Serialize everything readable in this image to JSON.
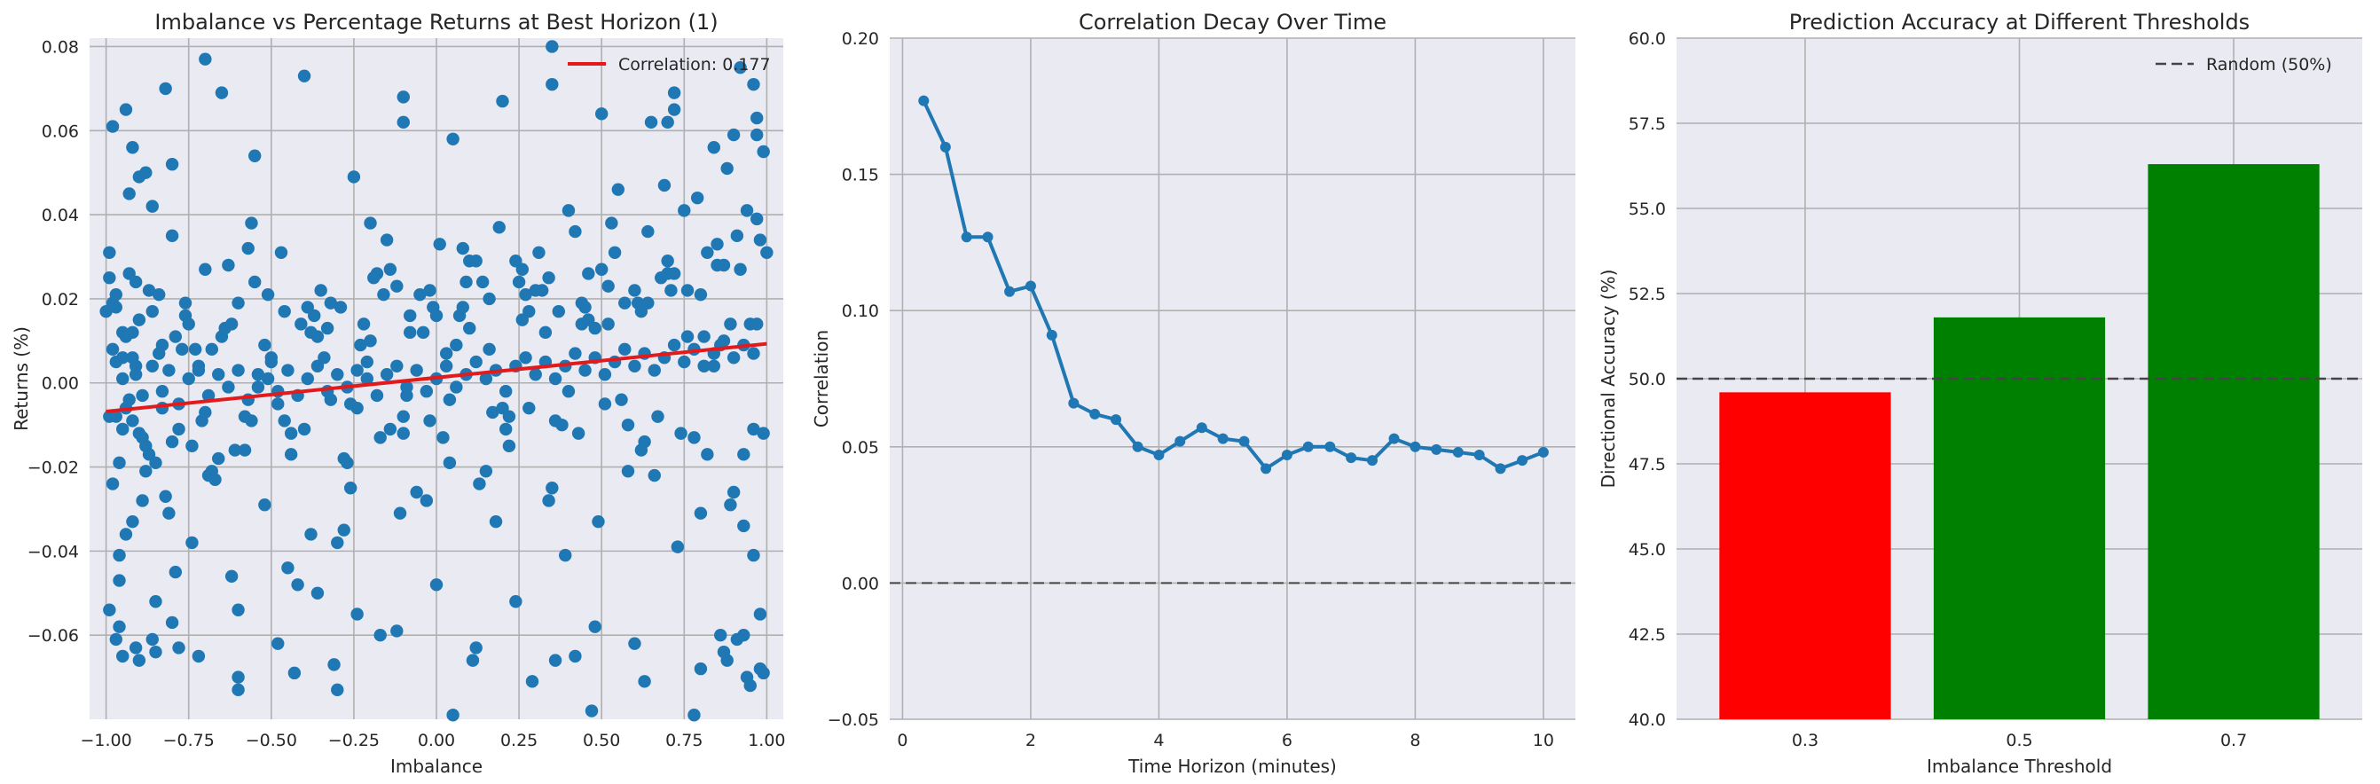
{
  "colors": {
    "panel_bg": "#eaeaf2",
    "grid": "#b0b0b0",
    "scatter": "#1f77b4",
    "fit_line": "#e31a1c",
    "line": "#1f77b4",
    "bar_below": "#ff0000",
    "bar_above": "#008000",
    "ref_line": "#444444"
  },
  "chart_data": [
    {
      "type": "scatter",
      "title": "Imbalance vs Percentage Returns at Best Horizon (1)",
      "xlabel": "Imbalance",
      "ylabel": "Returns (%)",
      "xlim": [
        -1.05,
        1.05
      ],
      "ylim": [
        -0.08,
        0.082
      ],
      "xticks": [
        -1.0,
        -0.75,
        -0.5,
        -0.25,
        0.0,
        0.25,
        0.5,
        0.75,
        1.0
      ],
      "xtick_labels": [
        "−1.00",
        "−0.75",
        "−0.50",
        "−0.25",
        "0.00",
        "0.25",
        "0.50",
        "0.75",
        "1.00"
      ],
      "yticks": [
        -0.06,
        -0.04,
        -0.02,
        0.0,
        0.02,
        0.04,
        0.06,
        0.08
      ],
      "ytick_labels": [
        "−0.06",
        "−0.04",
        "−0.02",
        "0.00",
        "0.02",
        "0.04",
        "0.06",
        "0.08"
      ],
      "grid": true,
      "legend_position": "top-right",
      "legend_label": "Correlation: 0.177",
      "fit_line": {
        "x": [
          -1.0,
          1.0
        ],
        "y": [
          -0.0068,
          0.0093
        ]
      },
      "points": {
        "x": [
          -0.99,
          -0.98,
          -0.97,
          -0.96,
          -0.95,
          -0.94,
          -0.93,
          -0.92,
          -0.91,
          -0.9,
          -0.88,
          -0.87,
          -0.85,
          -0.83,
          -0.82,
          -0.8,
          -0.78,
          -0.76,
          -0.74,
          -0.72,
          -0.7,
          -0.68,
          -0.65,
          -0.62,
          -0.6,
          -0.58,
          -0.55,
          -0.52,
          -0.5,
          -0.47,
          -0.44,
          -0.41,
          -0.38,
          -0.35,
          -0.32,
          -0.29,
          -0.26,
          -0.23,
          -0.2,
          -0.17,
          -0.14,
          -0.11,
          -0.08,
          -0.05,
          -0.02,
          0.01,
          0.04,
          0.07,
          0.1,
          0.13,
          0.16,
          0.19,
          0.22,
          0.25,
          0.28,
          0.31,
          0.34,
          0.37,
          0.4,
          0.43,
          0.46,
          0.49,
          0.52,
          0.55,
          0.58,
          0.61,
          0.64,
          0.67,
          0.7,
          0.73,
          0.76,
          0.79,
          0.82,
          0.85,
          0.88,
          0.9,
          0.92,
          0.94,
          0.96,
          0.98,
          0.99,
          -0.97,
          -0.93,
          -0.89,
          -0.84,
          -0.79,
          -0.73,
          -0.66,
          -0.57,
          -0.48,
          -0.39,
          -0.3,
          -0.21,
          -0.12,
          -0.03,
          0.06,
          0.15,
          0.24,
          0.33,
          0.42,
          0.51,
          0.6,
          0.69,
          0.78,
          0.87,
          0.95,
          -0.99,
          -0.95,
          -0.9,
          -0.86,
          -0.81,
          -0.75,
          -0.69,
          -0.63,
          -0.54,
          -0.45,
          -0.36,
          -0.27,
          -0.18,
          -0.09,
          0.0,
          0.09,
          0.18,
          0.27,
          0.36,
          0.45,
          0.54,
          0.63,
          0.72,
          0.81,
          0.89,
          0.97,
          -0.98,
          -0.94,
          -0.91,
          -0.87,
          -0.8,
          -0.71,
          -0.61,
          -0.51,
          -0.42,
          -0.33,
          -0.24,
          -0.15,
          -0.06,
          0.03,
          0.12,
          0.21,
          0.3,
          0.39,
          0.48,
          0.57,
          0.66,
          0.75,
          0.84,
          0.93,
          1.0,
          -1.0,
          -0.96,
          -0.92,
          -0.85,
          -0.77,
          -0.67,
          -0.56,
          -0.46,
          -0.37,
          -0.28,
          -0.19,
          -0.1,
          -0.01,
          0.08,
          0.17,
          0.26,
          0.35,
          0.44,
          0.53,
          0.62,
          0.71,
          0.8,
          0.86,
          0.91,
          0.96,
          -0.99,
          -0.97,
          -0.95,
          -0.93,
          -0.91,
          -0.89,
          -0.86,
          -0.83,
          -0.81,
          -0.78,
          -0.75,
          -0.72,
          -0.69,
          -0.66,
          -0.63,
          -0.6,
          -0.57,
          -0.54,
          -0.51,
          -0.48,
          -0.45,
          -0.42,
          -0.39,
          -0.36,
          -0.33,
          -0.3,
          -0.27,
          -0.24,
          -0.21,
          -0.18,
          -0.15,
          -0.12,
          -0.09,
          -0.06,
          -0.03,
          0.0,
          0.03,
          0.06,
          0.09,
          0.12,
          0.15,
          0.18,
          0.21,
          0.24,
          0.27,
          0.3,
          0.33,
          0.36,
          0.39,
          0.42,
          0.45,
          0.48,
          0.51,
          0.54,
          0.57,
          0.6,
          0.63,
          0.66,
          0.69,
          0.72,
          0.75,
          0.78,
          0.81,
          0.84,
          0.87,
          0.9,
          0.93,
          0.96,
          0.99,
          -0.98,
          -0.96,
          -0.94,
          -0.92,
          -0.9,
          -0.88,
          -0.84,
          -0.8,
          -0.76,
          -0.7,
          -0.64,
          -0.58,
          -0.52,
          -0.46,
          -0.4,
          -0.34,
          -0.28,
          -0.22,
          -0.16,
          -0.1,
          -0.04,
          0.02,
          0.08,
          0.14,
          0.2,
          0.26,
          0.32,
          0.38,
          0.44,
          0.5,
          0.56,
          0.62,
          0.68,
          0.74,
          0.8,
          0.85,
          0.89,
          0.93,
          0.97,
          -0.99,
          -0.97,
          -0.95,
          -0.92,
          -0.89,
          -0.86,
          -0.83,
          -0.79,
          -0.74,
          -0.68,
          -0.62,
          -0.56,
          -0.5,
          -0.44,
          -0.38,
          -0.32,
          -0.26,
          -0.2,
          -0.14,
          -0.08,
          -0.02,
          0.04,
          0.1,
          0.16,
          0.22,
          0.28,
          0.34,
          0.4,
          0.46,
          0.52,
          0.58,
          0.64,
          0.7,
          0.76,
          0.82,
          0.87,
          0.91,
          0.95,
          0.98,
          -0.96,
          -0.91,
          -0.86,
          -0.8,
          -0.72,
          -0.6,
          -0.48,
          -0.36,
          -0.24,
          -0.12,
          0.0,
          0.12,
          0.24,
          0.36,
          0.48,
          0.6,
          0.72,
          0.84,
          0.92,
          0.97,
          -0.98,
          -0.94,
          -0.88,
          -0.82,
          -0.7,
          -0.55,
          -0.4,
          -0.25,
          -0.1,
          0.05,
          0.2,
          0.35,
          0.5,
          0.65,
          0.8,
          0.88,
          0.94,
          0.99,
          -0.97,
          -0.9,
          -0.78,
          -0.6,
          -0.43,
          -0.31,
          -0.17,
          0.11,
          0.29,
          0.47,
          0.63,
          0.78,
          0.86,
          0.93,
          0.98,
          -0.95,
          -0.85,
          -0.6,
          -0.3,
          0.05,
          0.42,
          0.72,
          0.9,
          0.97,
          -0.92,
          -0.65,
          -0.1,
          0.35,
          0.7,
          0.96
        ],
        "y": [
          0.031,
          -0.024,
          0.018,
          -0.041,
          0.012,
          -0.006,
          0.026,
          -0.033,
          0.004,
          0.049,
          -0.015,
          0.022,
          -0.052,
          0.009,
          -0.027,
          0.035,
          -0.011,
          0.016,
          -0.038,
          0.003,
          0.027,
          -0.021,
          0.011,
          -0.046,
          0.019,
          -0.008,
          0.024,
          -0.029,
          0.006,
          0.031,
          -0.017,
          0.014,
          -0.036,
          0.022,
          -0.004,
          0.018,
          -0.025,
          0.009,
          0.038,
          -0.013,
          0.027,
          -0.031,
          0.012,
          0.021,
          -0.009,
          0.033,
          -0.019,
          0.016,
          0.029,
          -0.024,
          0.008,
          0.037,
          -0.015,
          0.024,
          -0.006,
          0.031,
          -0.028,
          0.017,
          0.041,
          -0.012,
          0.026,
          -0.033,
          0.014,
          0.046,
          -0.021,
          0.019,
          0.036,
          -0.008,
          0.029,
          -0.039,
          0.022,
          0.044,
          -0.017,
          0.033,
          0.051,
          -0.026,
          0.027,
          0.041,
          -0.011,
          0.034,
          0.055,
          -0.008,
          0.045,
          -0.028,
          0.021,
          -0.045,
          0.008,
          -0.018,
          0.032,
          -0.005,
          0.018,
          -0.038,
          0.005,
          0.023,
          -0.028,
          0.009,
          -0.021,
          0.029,
          0.012,
          0.036,
          -0.005,
          0.022,
          0.047,
          -0.013,
          0.028,
          0.014,
          -0.054,
          0.006,
          -0.012,
          0.042,
          -0.031,
          0.014,
          -0.022,
          0.028,
          -0.001,
          -0.044,
          0.011,
          -0.019,
          0.026,
          -0.003,
          0.016,
          0.024,
          -0.033,
          0.021,
          -0.009,
          0.018,
          0.031,
          -0.014,
          0.026,
          0.011,
          -0.029,
          0.039,
          0.019,
          -0.036,
          0.024,
          -0.017,
          0.052,
          -0.009,
          -0.016,
          0.021,
          -0.048,
          0.013,
          -0.006,
          0.034,
          -0.026,
          0.007,
          0.029,
          -0.011,
          0.022,
          -0.041,
          0.013,
          0.019,
          -0.022,
          0.041,
          0.004,
          -0.034,
          0.031,
          0.017,
          -0.047,
          0.012,
          -0.019,
          0.008,
          -0.023,
          0.038,
          -0.009,
          0.016,
          -0.035,
          0.025,
          -0.012,
          0.018,
          0.032,
          -0.007,
          0.027,
          -0.025,
          0.014,
          0.038,
          -0.016,
          0.022,
          -0.031,
          0.009,
          0.035,
          -0.041,
          0.025,
          0.005,
          0.001,
          -0.004,
          0.002,
          -0.003,
          0.004,
          -0.002,
          0.003,
          -0.005,
          0.001,
          0.004,
          -0.003,
          0.002,
          -0.001,
          0.003,
          -0.004,
          0.002,
          0.001,
          -0.002,
          0.003,
          -0.003,
          0.001,
          0.004,
          -0.002,
          0.002,
          -0.001,
          0.003,
          0.001,
          -0.003,
          0.002,
          0.004,
          -0.001,
          0.003,
          -0.002,
          0.001,
          0.004,
          -0.001,
          0.002,
          0.005,
          0.001,
          0.003,
          -0.002,
          0.004,
          0.006,
          0.002,
          0.005,
          0.001,
          0.004,
          0.007,
          0.003,
          0.006,
          0.002,
          0.005,
          0.008,
          0.004,
          0.007,
          0.003,
          0.006,
          0.009,
          0.005,
          0.008,
          0.004,
          0.007,
          0.01,
          0.006,
          0.009,
          0.007,
          -0.012,
          0.008,
          -0.019,
          0.011,
          -0.009,
          0.015,
          -0.021,
          0.007,
          -0.014,
          0.019,
          -0.007,
          0.013,
          -0.016,
          0.009,
          0.017,
          -0.011,
          0.006,
          -0.018,
          0.014,
          0.021,
          -0.008,
          0.012,
          -0.013,
          0.018,
          0.024,
          -0.006,
          0.015,
          0.022,
          -0.01,
          0.019,
          0.027,
          -0.004,
          0.017,
          0.025,
          -0.012,
          0.021,
          0.028,
          0.014,
          -0.017,
          0.014,
          -0.008,
          0.021,
          -0.011,
          0.006,
          -0.013,
          0.017,
          -0.006,
          0.011,
          -0.015,
          0.008,
          0.014,
          -0.009,
          0.005,
          -0.012,
          0.012,
          0.019,
          -0.005,
          0.01,
          -0.011,
          0.016,
          0.022,
          -0.004,
          0.013,
          0.02,
          -0.008,
          0.017,
          0.025,
          -0.002,
          0.015,
          0.023,
          -0.01,
          0.019,
          0.026,
          0.011,
          0.031,
          -0.064,
          -0.061,
          -0.072,
          -0.055,
          -0.058,
          -0.063,
          -0.061,
          -0.057,
          -0.065,
          -0.054,
          -0.062,
          -0.05,
          -0.055,
          -0.059,
          -0.048,
          -0.063,
          -0.052,
          -0.066,
          -0.058,
          -0.062,
          0.065,
          0.056,
          0.075,
          0.059,
          0.061,
          0.065,
          0.05,
          0.07,
          0.077,
          0.054,
          0.073,
          0.049,
          0.062,
          0.058,
          0.067,
          0.071,
          0.064,
          0.062,
          -0.068,
          -0.066,
          -0.07,
          -0.069,
          -0.061,
          -0.066,
          -0.063,
          -0.07,
          -0.069,
          -0.067,
          -0.06,
          -0.066,
          -0.071,
          -0.078,
          -0.071,
          -0.079,
          -0.06,
          -0.06,
          -0.068,
          -0.065,
          -0.064,
          -0.073,
          -0.073,
          -0.079,
          -0.065,
          0.069,
          0.059,
          0.063,
          0.056,
          0.069,
          0.068,
          0.08,
          0.062,
          0.071
        ]
      }
    },
    {
      "type": "line",
      "title": "Correlation Decay Over Time",
      "xlabel": "Time Horizon (minutes)",
      "ylabel": "Correlation",
      "xlim": [
        -0.2,
        10.5
      ],
      "ylim": [
        -0.05,
        0.2
      ],
      "xticks": [
        0,
        2,
        4,
        6,
        8,
        10
      ],
      "xtick_labels": [
        "0",
        "2",
        "4",
        "6",
        "8",
        "10"
      ],
      "yticks": [
        -0.05,
        0.0,
        0.05,
        0.1,
        0.15,
        0.2
      ],
      "ytick_labels": [
        "−0.05",
        "0.00",
        "0.05",
        "0.10",
        "0.15",
        "0.20"
      ],
      "grid": true,
      "zero_line": 0.0,
      "x": [
        0.33,
        0.67,
        1.0,
        1.33,
        1.67,
        2.0,
        2.33,
        2.67,
        3.0,
        3.33,
        3.67,
        4.0,
        4.33,
        4.67,
        5.0,
        5.33,
        5.67,
        6.0,
        6.33,
        6.67,
        7.0,
        7.33,
        7.67,
        8.0,
        8.33,
        8.67,
        9.0,
        9.33,
        9.67,
        10.0
      ],
      "y": [
        0.177,
        0.16,
        0.127,
        0.127,
        0.107,
        0.109,
        0.091,
        0.066,
        0.062,
        0.06,
        0.05,
        0.047,
        0.052,
        0.057,
        0.053,
        0.052,
        0.042,
        0.047,
        0.05,
        0.05,
        0.046,
        0.045,
        0.053,
        0.05,
        0.049,
        0.048,
        0.047,
        0.042,
        0.045,
        0.048
      ]
    },
    {
      "type": "bar",
      "title": "Prediction Accuracy at Different Thresholds",
      "xlabel": "Imbalance Threshold",
      "ylabel": "Directional Accuracy (%)",
      "ylim": [
        40.0,
        60.0
      ],
      "yticks": [
        40.0,
        42.5,
        45.0,
        47.5,
        50.0,
        52.5,
        55.0,
        57.5,
        60.0
      ],
      "ytick_labels": [
        "40.0",
        "42.5",
        "45.0",
        "47.5",
        "50.0",
        "52.5",
        "55.0",
        "57.5",
        "60.0"
      ],
      "categories": [
        "0.3",
        "0.5",
        "0.7"
      ],
      "values": [
        49.6,
        51.8,
        56.3
      ],
      "bar_colors": [
        "#ff0000",
        "#008000",
        "#008000"
      ],
      "grid": true,
      "reference_line": {
        "value": 50.0,
        "label": "Random (50%)"
      },
      "legend_position": "top-right"
    }
  ]
}
